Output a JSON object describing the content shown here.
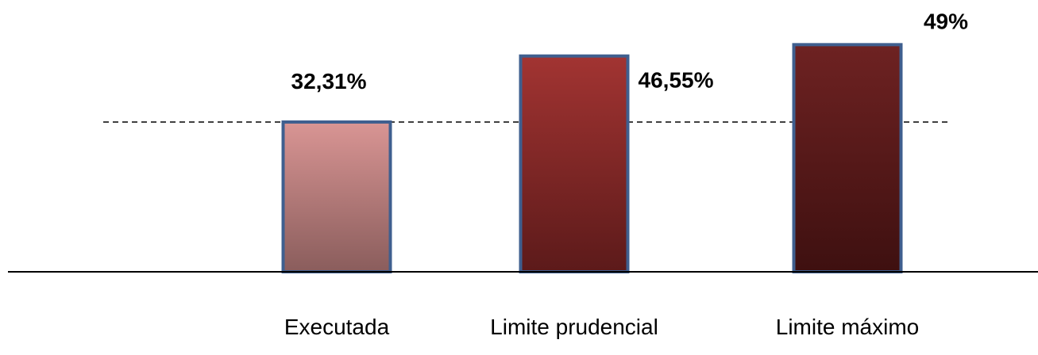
{
  "chart_data": {
    "type": "bar",
    "categories": [
      "Executada",
      "Limite prudencial",
      "Limite máximo"
    ],
    "values": [
      32.31,
      46.55,
      49
    ],
    "value_labels": [
      "32,31%",
      "46,55%",
      "49%"
    ],
    "title": "",
    "xlabel": "",
    "ylabel": "",
    "reference_line": 32.31,
    "grid": false,
    "legend": "none",
    "colors": {
      "bar_gradients": [
        [
          "#d99594",
          "#8a5d5c"
        ],
        [
          "#a23432",
          "#5c1a1a"
        ],
        [
          "#6e2222",
          "#3e1010"
        ]
      ],
      "bar_border": "#3f5f8f",
      "axis": "#000000",
      "reference_line": "#000000"
    }
  }
}
